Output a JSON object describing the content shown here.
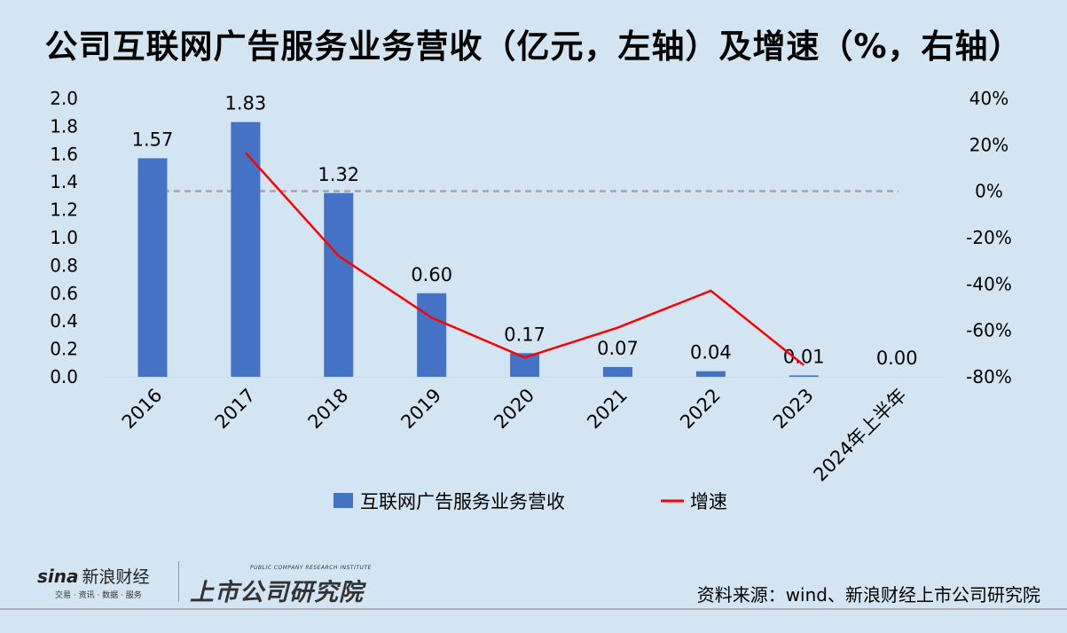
{
  "chart_data": {
    "type": "bar+line",
    "title": "公司互联网广告服务业务营收（亿元，左轴）及增速（%，右轴）",
    "categories": [
      "2016",
      "2017",
      "2018",
      "2019",
      "2020",
      "2021",
      "2022",
      "2023",
      "2024年上半年"
    ],
    "series": [
      {
        "name": "互联网广告服务业务营收",
        "type": "bar",
        "axis": "left",
        "color": "#4472c4",
        "values": [
          1.57,
          1.83,
          1.32,
          0.6,
          0.17,
          0.07,
          0.04,
          0.01,
          0.0
        ],
        "labels": [
          "1.57",
          "1.83",
          "1.32",
          "0.60",
          "0.17",
          "0.07",
          "0.04",
          "0.01",
          "0.00"
        ]
      },
      {
        "name": "增速",
        "type": "line",
        "axis": "right",
        "color": "#ff0000",
        "values": [
          null,
          16.6,
          -27.9,
          -54.5,
          -71.7,
          -58.8,
          -42.9,
          -75.0,
          null
        ]
      }
    ],
    "left_axis": {
      "ylim": [
        0,
        2.0
      ],
      "ticks": [
        "0.0",
        "0.2",
        "0.4",
        "0.6",
        "0.8",
        "1.0",
        "1.2",
        "1.4",
        "1.6",
        "1.8",
        "2.0"
      ]
    },
    "right_axis": {
      "ylim": [
        -80,
        40
      ],
      "ticks": [
        "-80%",
        "-60%",
        "-40%",
        "-20%",
        "0%",
        "20%",
        "40%"
      ]
    },
    "reference_line": {
      "axis": "right",
      "value": 0,
      "style": "dashed",
      "color": "#a6a6a6"
    },
    "legend": "bottom",
    "grid": false
  },
  "footer": {
    "sina_logo": "sina新浪财经",
    "sina_sub": "交易 · 资讯 · 数据 · 服务",
    "institute_logo": "上市公司研究院",
    "institute_en": "PUBLIC COMPANY RESEARCH INSTITUTE",
    "source": "资料来源：wind、新浪财经上市公司研究院"
  },
  "colors": {
    "background": "#d3e5f3",
    "bar": "#4472c4",
    "line": "#ff0000"
  }
}
